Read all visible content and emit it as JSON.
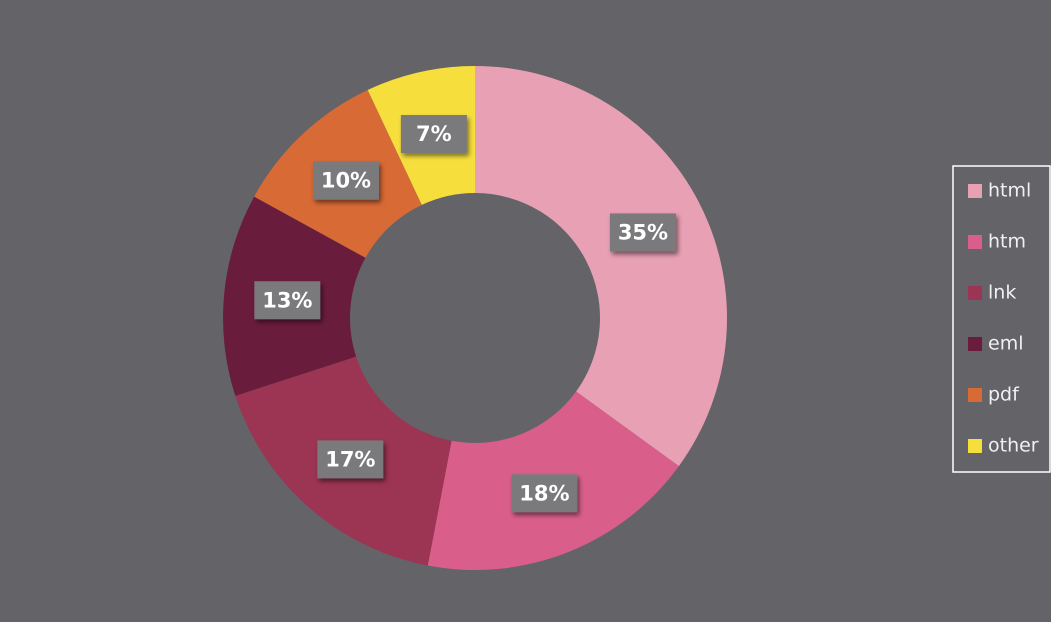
{
  "chart_data": {
    "type": "donut",
    "categories": [
      "html",
      "htm",
      "lnk",
      "eml",
      "pdf",
      "other"
    ],
    "values": [
      35,
      18,
      17,
      13,
      10,
      7
    ],
    "value_labels": [
      "35%",
      "18%",
      "17%",
      "13%",
      "10%",
      "7%"
    ],
    "colors": [
      "#e8a0b4",
      "#d95f8a",
      "#9c3454",
      "#6a1c3c",
      "#d86a35",
      "#f6df3d"
    ],
    "legend": "right"
  }
}
